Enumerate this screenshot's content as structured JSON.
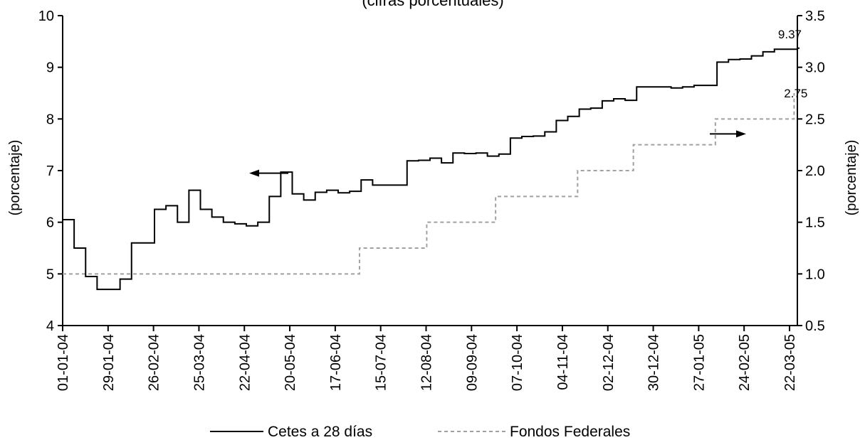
{
  "chart_data": {
    "type": "line",
    "title_partial": "(cifras porcentuales)",
    "y_left": {
      "label": "(porcentaje)",
      "ticks": [
        "4",
        "5",
        "6",
        "7",
        "8",
        "9",
        "10"
      ],
      "lim": [
        4,
        10
      ]
    },
    "y_right": {
      "label": "(porcentaje)",
      "ticks": [
        "0.5",
        "1.0",
        "1.5",
        "2.0",
        "2.5",
        "3.0",
        "3.5"
      ],
      "lim": [
        0.5,
        3.5
      ]
    },
    "x_ticks": [
      "01-01-04",
      "29-01-04",
      "26-02-04",
      "25-03-04",
      "22-04-04",
      "20-05-04",
      "17-06-04",
      "15-07-04",
      "12-08-04",
      "09-09-04",
      "07-10-04",
      "04-11-04",
      "02-12-04",
      "30-12-04",
      "27-01-05",
      "24-02-05",
      "22-03-05"
    ],
    "series": [
      {
        "name": "Cetes a 28 días",
        "axis": "left",
        "style": "solid",
        "x": [
          "2004-01-01",
          "2004-01-08",
          "2004-01-15",
          "2004-01-22",
          "2004-01-29",
          "2004-02-05",
          "2004-02-12",
          "2004-02-19",
          "2004-02-26",
          "2004-03-04",
          "2004-03-11",
          "2004-03-18",
          "2004-03-25",
          "2004-04-01",
          "2004-04-08",
          "2004-04-15",
          "2004-04-22",
          "2004-04-29",
          "2004-05-06",
          "2004-05-13",
          "2004-05-20",
          "2004-05-27",
          "2004-06-03",
          "2004-06-10",
          "2004-06-17",
          "2004-06-24",
          "2004-07-01",
          "2004-07-08",
          "2004-07-15",
          "2004-07-22",
          "2004-07-29",
          "2004-08-05",
          "2004-08-12",
          "2004-08-19",
          "2004-08-26",
          "2004-09-02",
          "2004-09-09",
          "2004-09-16",
          "2004-09-23",
          "2004-09-30",
          "2004-10-07",
          "2004-10-14",
          "2004-10-21",
          "2004-10-28",
          "2004-11-04",
          "2004-11-11",
          "2004-11-18",
          "2004-11-25",
          "2004-12-02",
          "2004-12-09",
          "2004-12-16",
          "2004-12-23",
          "2004-12-30",
          "2005-01-06",
          "2005-01-13",
          "2005-01-20",
          "2005-01-27",
          "2005-02-03",
          "2005-02-10",
          "2005-02-17",
          "2005-02-24",
          "2005-03-03",
          "2005-03-10",
          "2005-03-17",
          "2005-03-24"
        ],
        "values": [
          6.05,
          5.5,
          4.95,
          4.7,
          4.7,
          4.9,
          5.6,
          5.6,
          6.25,
          6.32,
          6.0,
          6.62,
          6.25,
          6.1,
          6.0,
          5.97,
          5.93,
          6.0,
          6.5,
          6.97,
          6.55,
          6.43,
          6.58,
          6.62,
          6.57,
          6.6,
          6.82,
          6.72,
          6.72,
          6.72,
          7.19,
          7.2,
          7.24,
          7.15,
          7.34,
          7.33,
          7.34,
          7.28,
          7.32,
          7.63,
          7.66,
          7.67,
          7.75,
          7.97,
          8.05,
          8.19,
          8.21,
          8.35,
          8.39,
          8.36,
          8.62,
          8.62,
          8.62,
          8.6,
          8.62,
          8.65,
          8.65,
          9.1,
          9.15,
          9.16,
          9.22,
          9.3,
          9.35,
          9.35,
          9.37
        ],
        "end_label": "9.37"
      },
      {
        "name": "Fondos Federales",
        "axis": "right",
        "style": "dashed",
        "x": [
          "2004-01-01",
          "2004-06-30",
          "2004-08-10",
          "2004-09-21",
          "2004-11-10",
          "2004-12-14",
          "2005-02-02",
          "2005-03-22"
        ],
        "values": [
          1.0,
          1.25,
          1.5,
          1.75,
          2.0,
          2.25,
          2.5,
          2.75
        ],
        "end_label": "2.75"
      }
    ],
    "x_range": [
      "2004-01-01",
      "2005-03-24"
    ],
    "legend_position": "bottom",
    "grid": false,
    "annotations": [
      {
        "type": "arrow",
        "direction": "left",
        "target_axis": "left"
      },
      {
        "type": "arrow",
        "direction": "right",
        "target_axis": "right"
      }
    ],
    "colors": {
      "cetes": "#000000",
      "fondos": "#a0a0a0"
    }
  }
}
